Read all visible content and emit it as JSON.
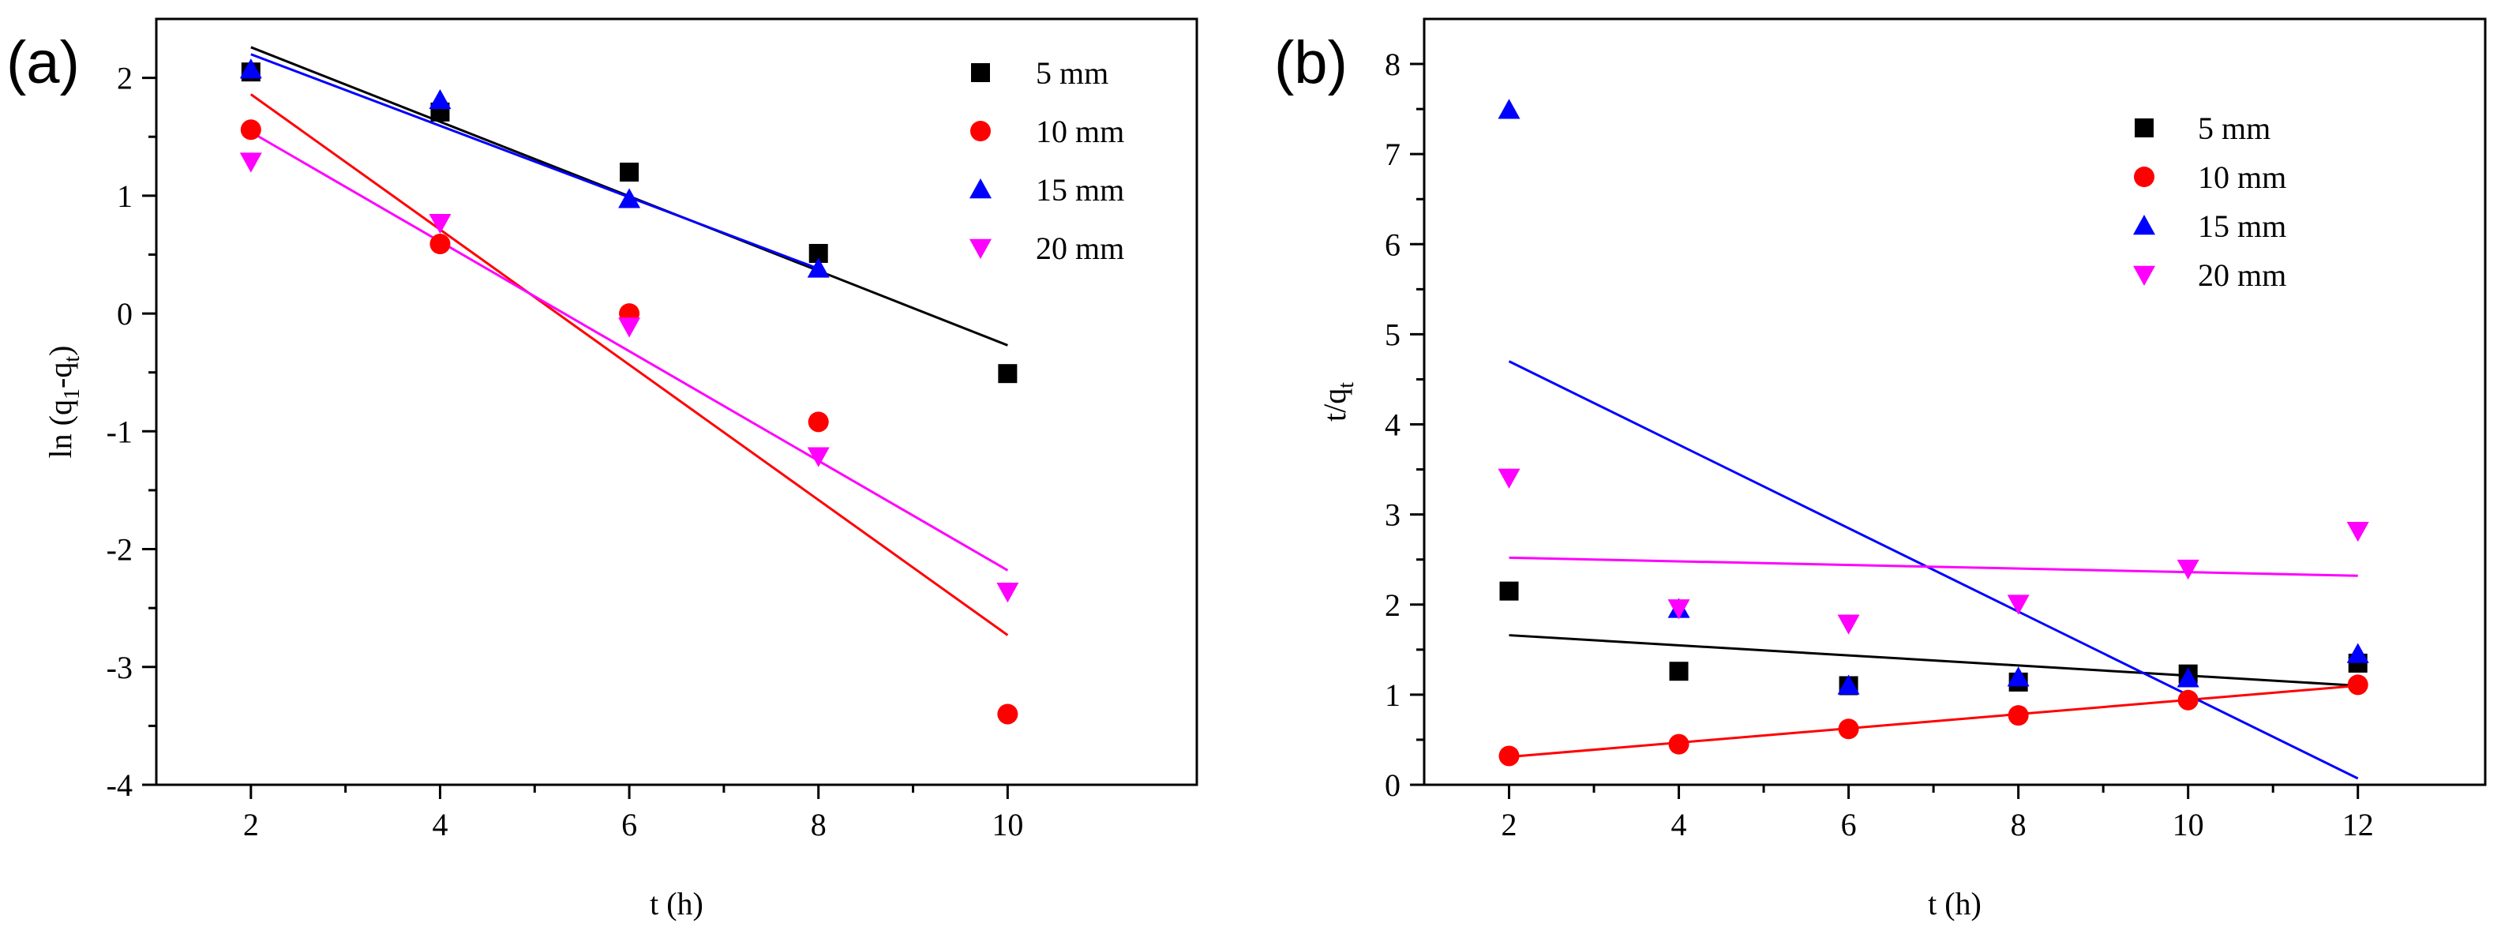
{
  "chart_data": [
    {
      "type": "scatter",
      "panel_label": "(a)",
      "xlabel": "t (h)",
      "ylabel": {
        "prefix": "ln (q",
        "sub1": "1",
        "mid": "-q",
        "sub2": "t",
        "suffix": ")"
      },
      "xlim": [
        1,
        12
      ],
      "ylim": [
        -4,
        2.5
      ],
      "xticks": [
        2,
        4,
        6,
        8,
        10
      ],
      "yticks": [
        -4,
        -3,
        -2,
        -1,
        0,
        1,
        2
      ],
      "legend_position": "top-right",
      "series": [
        {
          "name": "5 mm",
          "marker": "square",
          "color": "#000000",
          "x": [
            2,
            4,
            6,
            8,
            10
          ],
          "y": [
            2.05,
            1.71,
            1.2,
            0.51,
            -0.51
          ],
          "fit": {
            "x": [
              2,
              10
            ],
            "y": [
              2.26,
              -0.27
            ]
          }
        },
        {
          "name": "10 mm",
          "marker": "circle",
          "color": "#ff0000",
          "x": [
            2,
            4,
            6,
            8,
            10
          ],
          "y": [
            1.56,
            0.59,
            0.0,
            -0.92,
            -3.4
          ],
          "fit": {
            "x": [
              2,
              10
            ],
            "y": [
              1.86,
              -2.73
            ]
          }
        },
        {
          "name": "15 mm",
          "marker": "triangle-up",
          "color": "#0000ff",
          "x": [
            2,
            4,
            6,
            8
          ],
          "y": [
            2.07,
            1.81,
            0.97,
            0.38
          ],
          "fit": {
            "x": [
              2,
              8
            ],
            "y": [
              2.2,
              0.38
            ]
          }
        },
        {
          "name": "20 mm",
          "marker": "triangle-down",
          "color": "#ff00ff",
          "x": [
            2,
            4,
            6,
            8,
            10
          ],
          "y": [
            1.29,
            0.77,
            -0.11,
            -1.21,
            -2.36
          ],
          "fit": {
            "x": [
              2,
              10
            ],
            "y": [
              1.54,
              -2.18
            ]
          }
        }
      ]
    },
    {
      "type": "scatter",
      "panel_label": "(b)",
      "xlabel": "t (h)",
      "ylabel": {
        "prefix": "t/q",
        "sub": "t"
      },
      "xlim": [
        1,
        13.5
      ],
      "ylim": [
        0,
        8.5
      ],
      "xticks": [
        2,
        4,
        6,
        8,
        10,
        12
      ],
      "yticks": [
        0,
        1,
        2,
        3,
        4,
        5,
        6,
        7,
        8
      ],
      "legend_position": "top-right",
      "series": [
        {
          "name": "5 mm",
          "marker": "square",
          "color": "#000000",
          "x": [
            2,
            4,
            6,
            8,
            10,
            12
          ],
          "y": [
            2.15,
            1.26,
            1.1,
            1.14,
            1.23,
            1.35
          ],
          "fit": {
            "x": [
              2,
              12
            ],
            "y": [
              1.66,
              1.1
            ]
          }
        },
        {
          "name": "10 mm",
          "marker": "circle",
          "color": "#ff0000",
          "x": [
            2,
            4,
            6,
            8,
            10,
            12
          ],
          "y": [
            0.32,
            0.45,
            0.62,
            0.77,
            0.94,
            1.11
          ],
          "fit": {
            "x": [
              2,
              12
            ],
            "y": [
              0.31,
              1.1
            ]
          }
        },
        {
          "name": "15 mm",
          "marker": "triangle-up",
          "color": "#0000ff",
          "x": [
            2,
            4,
            6,
            8,
            10,
            12
          ],
          "y": [
            7.49,
            1.95,
            1.1,
            1.19,
            1.18,
            1.45
          ],
          "fit": {
            "x": [
              2,
              12
            ],
            "y": [
              4.7,
              0.07
            ]
          }
        },
        {
          "name": "20 mm",
          "marker": "triangle-down",
          "color": "#ff00ff",
          "x": [
            2,
            4,
            6,
            8,
            10,
            12
          ],
          "y": [
            3.41,
            1.96,
            1.79,
            2.01,
            2.4,
            2.82
          ],
          "fit": {
            "x": [
              2,
              12
            ],
            "y": [
              2.52,
              2.32
            ]
          }
        }
      ]
    }
  ]
}
